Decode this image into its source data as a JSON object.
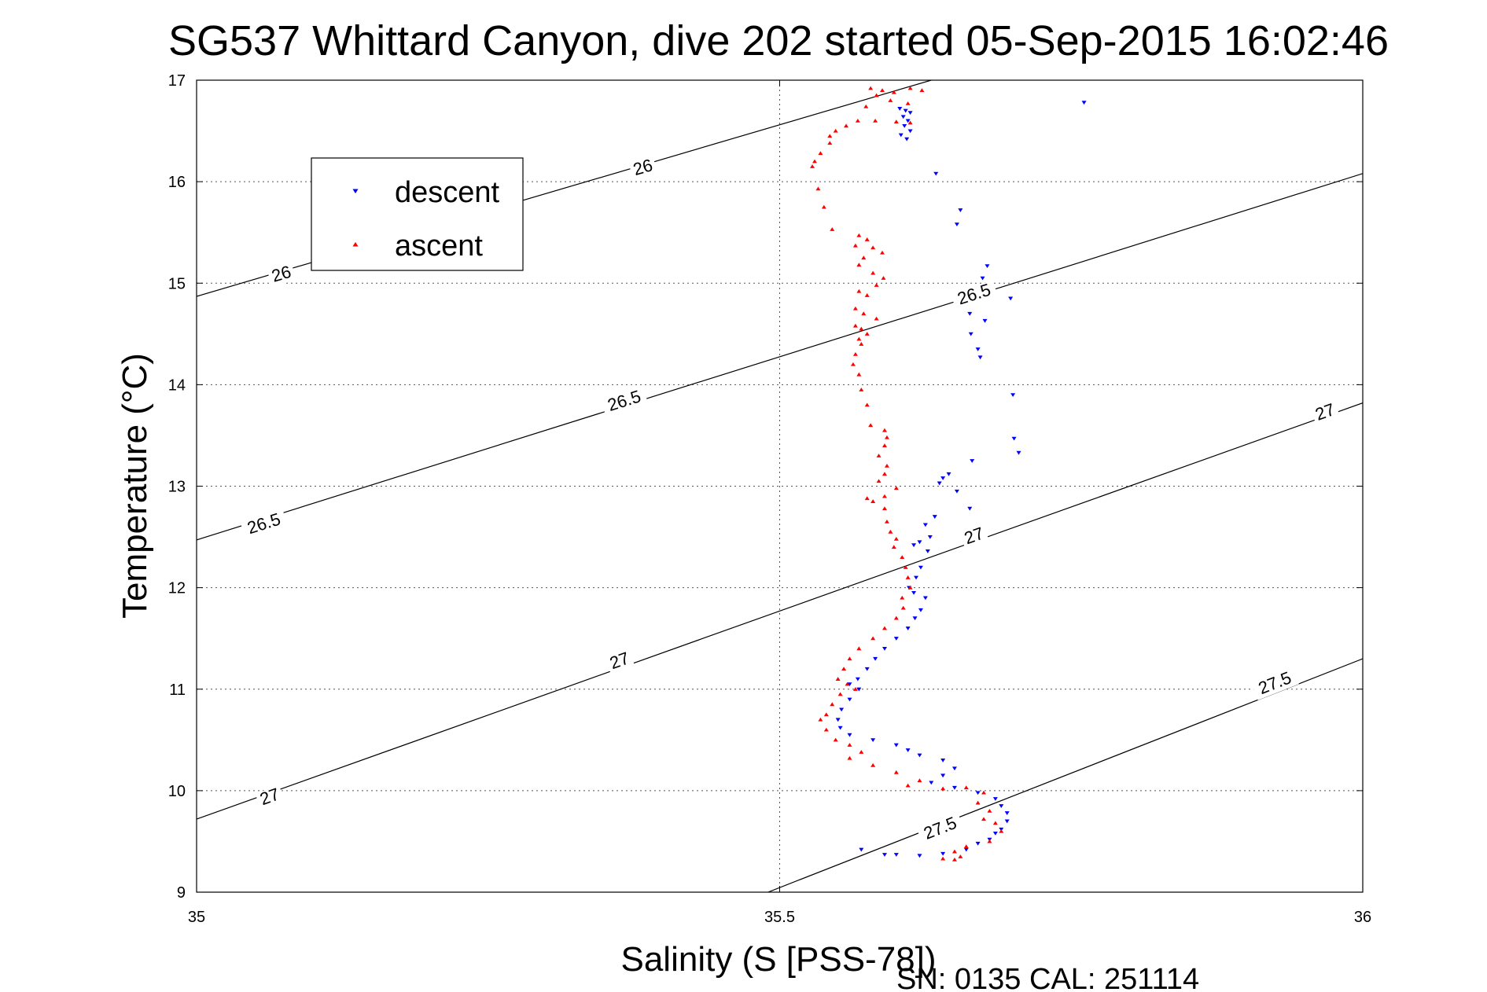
{
  "chart_data": {
    "type": "scatter",
    "title": "SG537 Whittard Canyon, dive 202 started 05-Sep-2015 16:02:46",
    "xlabel": "Salinity (S [PSS-78])",
    "ylabel": "Temperature (°C)",
    "xlim": [
      35,
      36
    ],
    "ylim": [
      9,
      17
    ],
    "x_ticks": [
      "35",
      "35.5",
      "36"
    ],
    "y_ticks": [
      "9",
      "10",
      "11",
      "12",
      "13",
      "14",
      "15",
      "16",
      "17"
    ],
    "grid": true,
    "legend_position": "upper-left",
    "footer": "SN: 0135  CAL: 251114",
    "density_contours": [
      {
        "level": "26",
        "points": [
          [
            35.0,
            14.87
          ],
          [
            35.63,
            17.0
          ]
        ],
        "label_positions": [
          [
            35.073,
            15.08
          ],
          [
            35.383,
            16.13
          ]
        ]
      },
      {
        "level": "26.5",
        "points": [
          [
            35.0,
            12.47
          ],
          [
            36.0,
            16.08
          ]
        ],
        "label_positions": [
          [
            35.058,
            12.62
          ],
          [
            35.367,
            13.83
          ],
          [
            35.667,
            14.88
          ]
        ]
      },
      {
        "level": "27",
        "points": [
          [
            35.0,
            9.72
          ],
          [
            36.0,
            13.82
          ]
        ],
        "label_positions": [
          [
            35.063,
            9.93
          ],
          [
            35.363,
            11.27
          ],
          [
            35.667,
            12.5
          ],
          [
            35.968,
            13.72
          ]
        ]
      },
      {
        "level": "27.5",
        "points": [
          [
            35.49,
            9.0
          ],
          [
            36.0,
            11.3
          ]
        ],
        "label_positions": [
          [
            35.638,
            9.62
          ],
          [
            35.925,
            11.05
          ]
        ]
      }
    ],
    "series": [
      {
        "name": "descent",
        "color": "#0000ff",
        "marker": "triangle-down",
        "points": [
          [
            35.603,
            16.72
          ],
          [
            35.608,
            16.7
          ],
          [
            35.612,
            16.68
          ],
          [
            35.606,
            16.64
          ],
          [
            35.61,
            16.6
          ],
          [
            35.607,
            16.55
          ],
          [
            35.612,
            16.5
          ],
          [
            35.604,
            16.46
          ],
          [
            35.609,
            16.42
          ],
          [
            35.761,
            16.78
          ],
          [
            35.634,
            16.08
          ],
          [
            35.655,
            15.72
          ],
          [
            35.652,
            15.58
          ],
          [
            35.678,
            15.17
          ],
          [
            35.674,
            15.05
          ],
          [
            35.698,
            14.85
          ],
          [
            35.663,
            14.7
          ],
          [
            35.676,
            14.63
          ],
          [
            35.664,
            14.5
          ],
          [
            35.67,
            14.35
          ],
          [
            35.672,
            14.27
          ],
          [
            35.7,
            13.9
          ],
          [
            35.701,
            13.47
          ],
          [
            35.705,
            13.33
          ],
          [
            35.665,
            13.25
          ],
          [
            35.645,
            13.12
          ],
          [
            35.64,
            13.08
          ],
          [
            35.637,
            13.03
          ],
          [
            35.652,
            12.95
          ],
          [
            35.663,
            12.78
          ],
          [
            35.633,
            12.7
          ],
          [
            35.625,
            12.62
          ],
          [
            35.629,
            12.5
          ],
          [
            35.62,
            12.45
          ],
          [
            35.615,
            12.42
          ],
          [
            35.627,
            12.36
          ],
          [
            35.621,
            12.2
          ],
          [
            35.617,
            12.1
          ],
          [
            35.611,
            12.0
          ],
          [
            35.615,
            11.95
          ],
          [
            35.625,
            11.9
          ],
          [
            35.621,
            11.78
          ],
          [
            35.616,
            11.7
          ],
          [
            35.61,
            11.6
          ],
          [
            35.6,
            11.5
          ],
          [
            35.59,
            11.4
          ],
          [
            35.582,
            11.3
          ],
          [
            35.575,
            11.2
          ],
          [
            35.567,
            11.1
          ],
          [
            35.56,
            11.05
          ],
          [
            35.568,
            11.0
          ],
          [
            35.56,
            10.9
          ],
          [
            35.553,
            10.8
          ],
          [
            35.55,
            10.7
          ],
          [
            35.552,
            10.62
          ],
          [
            35.56,
            10.55
          ],
          [
            35.58,
            10.5
          ],
          [
            35.6,
            10.45
          ],
          [
            35.61,
            10.4
          ],
          [
            35.62,
            10.35
          ],
          [
            35.64,
            10.3
          ],
          [
            35.65,
            10.22
          ],
          [
            35.64,
            10.15
          ],
          [
            35.63,
            10.08
          ],
          [
            35.65,
            10.03
          ],
          [
            35.67,
            9.98
          ],
          [
            35.685,
            9.92
          ],
          [
            35.69,
            9.85
          ],
          [
            35.695,
            9.78
          ],
          [
            35.695,
            9.7
          ],
          [
            35.69,
            9.62
          ],
          [
            35.685,
            9.58
          ],
          [
            35.68,
            9.52
          ],
          [
            35.67,
            9.48
          ],
          [
            35.66,
            9.42
          ],
          [
            35.64,
            9.38
          ],
          [
            35.62,
            9.36
          ],
          [
            35.6,
            9.37
          ],
          [
            35.59,
            9.37
          ],
          [
            35.57,
            9.42
          ]
        ]
      },
      {
        "name": "ascent",
        "color": "#ff0000",
        "marker": "triangle-up",
        "points": [
          [
            35.578,
            16.92
          ],
          [
            35.588,
            16.9
          ],
          [
            35.598,
            16.88
          ],
          [
            35.612,
            16.92
          ],
          [
            35.622,
            16.9
          ],
          [
            35.583,
            16.85
          ],
          [
            35.595,
            16.8
          ],
          [
            35.61,
            16.77
          ],
          [
            35.574,
            16.74
          ],
          [
            35.567,
            16.6
          ],
          [
            35.582,
            16.6
          ],
          [
            35.6,
            16.59
          ],
          [
            35.612,
            16.58
          ],
          [
            35.557,
            16.55
          ],
          [
            35.548,
            16.5
          ],
          [
            35.543,
            16.45
          ],
          [
            35.543,
            16.38
          ],
          [
            35.535,
            16.28
          ],
          [
            35.53,
            16.2
          ],
          [
            35.528,
            16.15
          ],
          [
            35.533,
            15.93
          ],
          [
            35.538,
            15.75
          ],
          [
            35.545,
            15.53
          ],
          [
            35.568,
            15.47
          ],
          [
            35.575,
            15.43
          ],
          [
            35.565,
            15.37
          ],
          [
            35.58,
            15.35
          ],
          [
            35.588,
            15.3
          ],
          [
            35.572,
            15.25
          ],
          [
            35.568,
            15.18
          ],
          [
            35.58,
            15.1
          ],
          [
            35.589,
            15.05
          ],
          [
            35.583,
            14.98
          ],
          [
            35.568,
            14.92
          ],
          [
            35.575,
            14.88
          ],
          [
            35.565,
            14.75
          ],
          [
            35.572,
            14.7
          ],
          [
            35.583,
            14.65
          ],
          [
            35.565,
            14.58
          ],
          [
            35.57,
            14.55
          ],
          [
            35.575,
            14.5
          ],
          [
            35.568,
            14.45
          ],
          [
            35.57,
            14.4
          ],
          [
            35.565,
            14.3
          ],
          [
            35.563,
            14.2
          ],
          [
            35.568,
            14.1
          ],
          [
            35.57,
            13.95
          ],
          [
            35.575,
            13.8
          ],
          [
            35.578,
            13.6
          ],
          [
            35.59,
            13.55
          ],
          [
            35.592,
            13.48
          ],
          [
            35.59,
            13.4
          ],
          [
            35.585,
            13.3
          ],
          [
            35.592,
            13.2
          ],
          [
            35.59,
            13.12
          ],
          [
            35.585,
            13.05
          ],
          [
            35.6,
            12.98
          ],
          [
            35.59,
            12.9
          ],
          [
            35.575,
            12.88
          ],
          [
            35.58,
            12.85
          ],
          [
            35.59,
            12.78
          ],
          [
            35.592,
            12.65
          ],
          [
            35.595,
            12.55
          ],
          [
            35.6,
            12.48
          ],
          [
            35.598,
            12.4
          ],
          [
            35.605,
            12.3
          ],
          [
            35.608,
            12.2
          ],
          [
            35.61,
            12.1
          ],
          [
            35.612,
            12.0
          ],
          [
            35.605,
            11.9
          ],
          [
            35.606,
            11.8
          ],
          [
            35.6,
            11.7
          ],
          [
            35.59,
            11.6
          ],
          [
            35.58,
            11.5
          ],
          [
            35.568,
            11.4
          ],
          [
            35.56,
            11.3
          ],
          [
            35.555,
            11.2
          ],
          [
            35.55,
            11.1
          ],
          [
            35.558,
            11.05
          ],
          [
            35.565,
            11.0
          ],
          [
            35.552,
            10.95
          ],
          [
            35.545,
            10.85
          ],
          [
            35.54,
            10.75
          ],
          [
            35.535,
            10.7
          ],
          [
            35.54,
            10.6
          ],
          [
            35.548,
            10.5
          ],
          [
            35.56,
            10.45
          ],
          [
            35.57,
            10.38
          ],
          [
            35.56,
            10.32
          ],
          [
            35.58,
            10.25
          ],
          [
            35.6,
            10.18
          ],
          [
            35.62,
            10.1
          ],
          [
            35.61,
            10.05
          ],
          [
            35.64,
            10.02
          ],
          [
            35.66,
            10.03
          ],
          [
            35.675,
            9.98
          ],
          [
            35.67,
            9.88
          ],
          [
            35.68,
            9.8
          ],
          [
            35.675,
            9.72
          ],
          [
            35.685,
            9.68
          ],
          [
            35.69,
            9.6
          ],
          [
            35.68,
            9.5
          ],
          [
            35.66,
            9.45
          ],
          [
            35.65,
            9.4
          ],
          [
            35.64,
            9.33
          ],
          [
            35.65,
            9.32
          ],
          [
            35.655,
            9.35
          ]
        ]
      }
    ]
  }
}
